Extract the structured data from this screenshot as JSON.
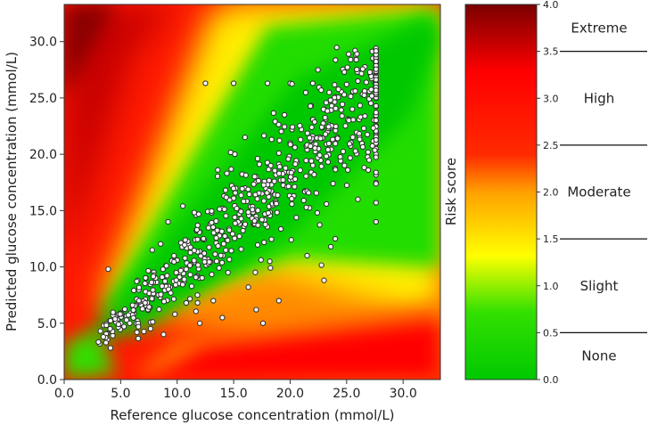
{
  "chart_data": {
    "type": "scatter",
    "xlabel": "Reference glucose concentration (mmol/L)",
    "ylabel": "Predicted glucose concentration (mmol/L)",
    "xlim": [
      0,
      33.3
    ],
    "ylim": [
      0,
      33.3
    ],
    "x_ticks": [
      "0.0",
      "5.0",
      "10.0",
      "15.0",
      "20.0",
      "25.0",
      "30.0"
    ],
    "y_ticks": [
      "0.0",
      "5.0",
      "10.0",
      "15.0",
      "20.0",
      "25.0",
      "30.0"
    ],
    "x_tick_values": [
      0,
      5,
      10,
      15,
      20,
      25,
      30
    ],
    "y_tick_values": [
      0,
      5,
      10,
      15,
      20,
      25,
      30
    ],
    "background": "surveillance error grid risk map (green = none, yellow = slight, orange = moderate, red = high, dark red = extreme)",
    "point_color": "#ffffff",
    "point_edge_color": "#333333",
    "n_points_approx": 700,
    "sample_points": [
      [
        3.2,
        4.3
      ],
      [
        3.5,
        4.8
      ],
      [
        3.8,
        4.1
      ],
      [
        4.0,
        5.2
      ],
      [
        4.3,
        3.9
      ],
      [
        4.6,
        5.6
      ],
      [
        5.0,
        5.9
      ],
      [
        5.3,
        4.7
      ],
      [
        6.1,
        6.5
      ],
      [
        6.5,
        5.2
      ],
      [
        7.2,
        7.8
      ],
      [
        7.6,
        6.4
      ],
      [
        8.1,
        9.0
      ],
      [
        8.5,
        7.3
      ],
      [
        9.0,
        10.1
      ],
      [
        9.4,
        8.2
      ],
      [
        10.0,
        10.6
      ],
      [
        10.3,
        9.5
      ],
      [
        11.0,
        12.0
      ],
      [
        11.5,
        10.4
      ],
      [
        12.0,
        13.1
      ],
      [
        12.4,
        11.2
      ],
      [
        13.0,
        13.8
      ],
      [
        13.5,
        12.6
      ],
      [
        14.0,
        15.2
      ],
      [
        14.6,
        13.4
      ],
      [
        15.0,
        16.1
      ],
      [
        15.5,
        14.7
      ],
      [
        16.0,
        17.0
      ],
      [
        16.6,
        15.3
      ],
      [
        17.0,
        18.0
      ],
      [
        17.5,
        16.5
      ],
      [
        18.0,
        19.2
      ],
      [
        18.6,
        17.6
      ],
      [
        19.0,
        20.1
      ],
      [
        19.5,
        18.4
      ],
      [
        20.0,
        21.0
      ],
      [
        20.6,
        19.3
      ],
      [
        21.0,
        22.2
      ],
      [
        21.5,
        20.4
      ],
      [
        22.0,
        23.1
      ],
      [
        22.6,
        21.5
      ],
      [
        23.0,
        24.0
      ],
      [
        23.5,
        22.6
      ],
      [
        24.0,
        25.1
      ],
      [
        24.6,
        23.4
      ],
      [
        25.0,
        26.2
      ],
      [
        25.5,
        24.0
      ],
      [
        26.0,
        26.5
      ],
      [
        26.6,
        25.3
      ],
      [
        27.6,
        28.5
      ],
      [
        27.6,
        26.0
      ],
      [
        27.6,
        23.0
      ],
      [
        27.6,
        20.0
      ],
      [
        27.6,
        17.5
      ],
      [
        27.6,
        14.0
      ],
      [
        12.5,
        26.3
      ],
      [
        15.0,
        26.3
      ],
      [
        18.0,
        26.3
      ],
      [
        20.0,
        26.3
      ],
      [
        22.0,
        26.3
      ],
      [
        9.2,
        14.0
      ],
      [
        10.5,
        15.4
      ],
      [
        8.8,
        4.0
      ],
      [
        12.0,
        5.0
      ],
      [
        14.0,
        5.5
      ],
      [
        17.0,
        6.2
      ],
      [
        17.6,
        5.0
      ],
      [
        19.0,
        7.0
      ],
      [
        21.5,
        11.0
      ],
      [
        23.0,
        8.8
      ],
      [
        24.0,
        12.5
      ],
      [
        26.0,
        16.0
      ],
      [
        19.5,
        23.5
      ],
      [
        16.0,
        21.5
      ],
      [
        15.1,
        20.0
      ],
      [
        13.6,
        18.6
      ],
      [
        14.5,
        9.5
      ],
      [
        16.3,
        8.2
      ],
      [
        18.2,
        10.5
      ],
      [
        20.1,
        12.4
      ],
      [
        22.4,
        14.8
      ],
      [
        25.1,
        18.6
      ],
      [
        23.8,
        17.4
      ],
      [
        21.2,
        15.9
      ],
      [
        6.5,
        8.8
      ],
      [
        7.8,
        11.5
      ],
      [
        5.8,
        5.0
      ],
      [
        4.1,
        2.8
      ],
      [
        3.9,
        9.8
      ],
      [
        11.8,
        7.5
      ],
      [
        13.2,
        7.0
      ],
      [
        10.8,
        6.8
      ],
      [
        9.8,
        5.8
      ]
    ]
  },
  "colorbar": {
    "label": "Risk score",
    "ticks": [
      "0.0",
      "0.5",
      "1.0",
      "1.5",
      "2.0",
      "2.5",
      "3.0",
      "3.5",
      "4.0"
    ],
    "tick_values": [
      0,
      0.5,
      1.0,
      1.5,
      2.0,
      2.5,
      3.0,
      3.5,
      4.0
    ],
    "range": [
      0,
      4
    ],
    "categories": [
      "None",
      "Slight",
      "Moderate",
      "High",
      "Extreme"
    ],
    "colors": {
      "none": "#00dd00",
      "slight": "#ffff00",
      "moderate": "#ff8000",
      "high": "#ff0000",
      "extreme": "#8b0000"
    }
  }
}
